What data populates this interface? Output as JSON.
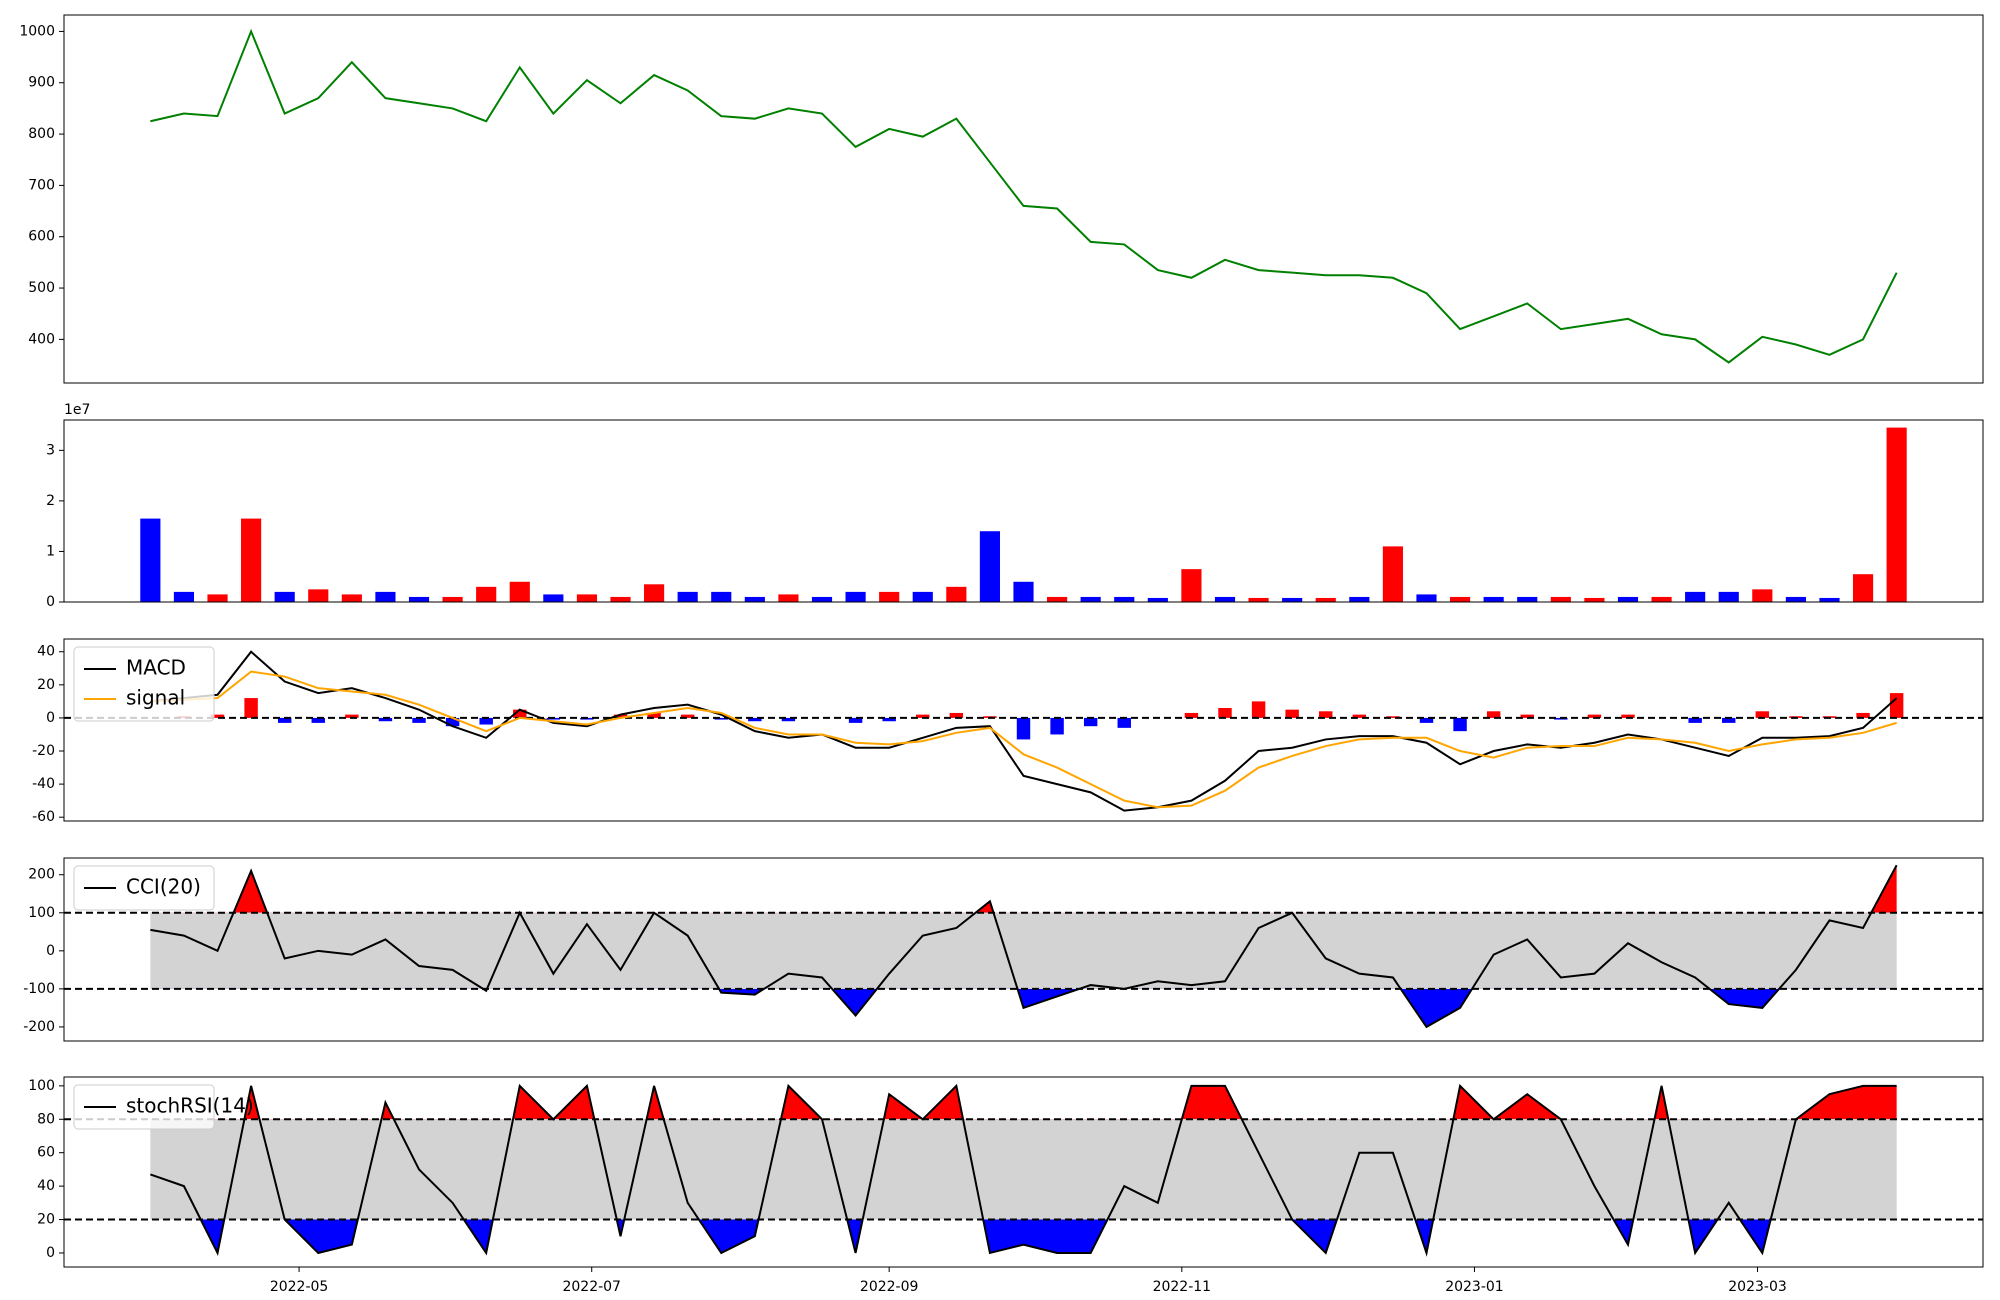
{
  "chart_data": [
    {
      "type": "line",
      "x": [
        0,
        7,
        14,
        21,
        28,
        35,
        42,
        49,
        56,
        63,
        70,
        77,
        84,
        91,
        98,
        105,
        112,
        119,
        126,
        133,
        140,
        147,
        154,
        161,
        168,
        175,
        182,
        189,
        196,
        203,
        210,
        217,
        224,
        231,
        238,
        245,
        252,
        259,
        266,
        273,
        280,
        287,
        294,
        301,
        308,
        315,
        322,
        329,
        336,
        343,
        350,
        357,
        364
      ],
      "xlim": [
        -18,
        382
      ],
      "ylim": [
        315,
        1032
      ],
      "yticks": [
        400,
        500,
        600,
        700,
        800,
        900,
        1000
      ],
      "series": [
        {
          "color": "green",
          "values": [
            825,
            840,
            835,
            1000,
            840,
            870,
            940,
            870,
            860,
            850,
            825,
            930,
            840,
            905,
            860,
            915,
            885,
            835,
            830,
            850,
            840,
            775,
            810,
            795,
            830,
            745,
            660,
            655,
            590,
            585,
            535,
            520,
            555,
            535,
            530,
            525,
            525,
            520,
            490,
            420,
            445,
            470,
            420,
            430,
            440,
            410,
            400,
            355,
            405,
            390,
            370,
            400,
            530
          ]
        }
      ]
    },
    {
      "type": "bar",
      "offset_label": "1e7",
      "x": [
        0,
        7,
        14,
        21,
        28,
        35,
        42,
        49,
        56,
        63,
        70,
        77,
        84,
        91,
        98,
        105,
        112,
        119,
        126,
        133,
        140,
        147,
        154,
        161,
        168,
        175,
        182,
        189,
        196,
        203,
        210,
        217,
        224,
        231,
        238,
        245,
        252,
        259,
        266,
        273,
        280,
        287,
        294,
        301,
        308,
        315,
        322,
        329,
        336,
        343,
        350,
        357,
        364
      ],
      "xlim": [
        -18,
        382
      ],
      "ylim": [
        0,
        3.6
      ],
      "yticks": [
        0,
        1,
        2,
        3
      ],
      "values": [
        1.65,
        0.2,
        0.15,
        1.65,
        0.2,
        0.25,
        0.15,
        0.2,
        0.1,
        0.1,
        0.3,
        0.4,
        0.15,
        0.15,
        0.1,
        0.35,
        0.2,
        0.2,
        0.1,
        0.15,
        0.1,
        0.2,
        0.2,
        0.2,
        0.3,
        1.4,
        0.4,
        0.1,
        0.1,
        0.1,
        0.08,
        0.65,
        0.1,
        0.08,
        0.08,
        0.08,
        0.1,
        1.1,
        0.15,
        0.1,
        0.1,
        0.1,
        0.1,
        0.08,
        0.1,
        0.1,
        0.2,
        0.2,
        0.25,
        0.1,
        0.08,
        0.55,
        3.45
      ],
      "colors": [
        "blue",
        "blue",
        "red",
        "red",
        "blue",
        "red",
        "red",
        "blue",
        "blue",
        "red",
        "red",
        "red",
        "blue",
        "red",
        "red",
        "red",
        "blue",
        "blue",
        "blue",
        "red",
        "blue",
        "blue",
        "red",
        "blue",
        "red",
        "blue",
        "blue",
        "red",
        "blue",
        "blue",
        "blue",
        "red",
        "blue",
        "red",
        "blue",
        "red",
        "blue",
        "red",
        "blue",
        "red",
        "blue",
        "blue",
        "red",
        "red",
        "blue",
        "red",
        "blue",
        "blue",
        "red",
        "blue",
        "blue",
        "red",
        "red"
      ]
    },
    {
      "type": "macd",
      "legend": "upper left",
      "x": [
        0,
        7,
        14,
        21,
        28,
        35,
        42,
        49,
        56,
        63,
        70,
        77,
        84,
        91,
        98,
        105,
        112,
        119,
        126,
        133,
        140,
        147,
        154,
        161,
        168,
        175,
        182,
        189,
        196,
        203,
        210,
        217,
        224,
        231,
        238,
        245,
        252,
        259,
        266,
        273,
        280,
        287,
        294,
        301,
        308,
        315,
        322,
        329,
        336,
        343,
        350,
        357,
        364
      ],
      "xlim": [
        -18,
        382
      ],
      "ylim": [
        -62.3,
        47.7
      ],
      "yticks": [
        -60,
        -40,
        -20,
        0,
        20,
        40
      ],
      "bands": [
        0
      ],
      "series": [
        {
          "name": "MACD",
          "color": "black",
          "values": [
            10,
            12,
            14,
            40,
            22,
            15,
            18,
            12,
            5,
            -5,
            -12,
            5,
            -3,
            -5,
            2,
            6,
            8,
            2,
            -8,
            -12,
            -10,
            -18,
            -18,
            -12,
            -6,
            -5,
            -35,
            -40,
            -45,
            -56,
            -54,
            -50,
            -38,
            -20,
            -18,
            -13,
            -11,
            -11,
            -15,
            -28,
            -20,
            -16,
            -18,
            -15,
            -10,
            -13,
            -18,
            -23,
            -12,
            -12,
            -11,
            -6,
            12
          ]
        },
        {
          "name": "signal",
          "color": "orange",
          "values": [
            10,
            11,
            12,
            28,
            25,
            18,
            16,
            14,
            8,
            0,
            -8,
            0,
            -2,
            -4,
            0,
            3,
            6,
            3,
            -6,
            -10,
            -10,
            -15,
            -16,
            -14,
            -9,
            -6,
            -22,
            -30,
            -40,
            -50,
            -54,
            -53,
            -44,
            -30,
            -23,
            -17,
            -13,
            -12,
            -12,
            -20,
            -24,
            -18,
            -17,
            -17,
            -12,
            -13,
            -15,
            -20,
            -16,
            -13,
            -12,
            -9,
            -3
          ]
        }
      ],
      "histogram": {
        "pos_color": "red",
        "neg_color": "blue",
        "values": [
          0,
          1,
          2,
          12,
          -3,
          -3,
          2,
          -2,
          -3,
          -5,
          -4,
          5,
          -1,
          -1,
          2,
          3,
          2,
          -1,
          -2,
          -2,
          0,
          -3,
          -2,
          2,
          3,
          1,
          -13,
          -10,
          -5,
          -6,
          0,
          3,
          6,
          10,
          5,
          4,
          2,
          1,
          -3,
          -8,
          4,
          2,
          -1,
          2,
          2,
          0,
          -3,
          -3,
          4,
          1,
          1,
          3,
          15
        ]
      }
    },
    {
      "type": "oscillator",
      "legend": "upper left",
      "x": [
        0,
        7,
        14,
        21,
        28,
        35,
        42,
        49,
        56,
        63,
        70,
        77,
        84,
        91,
        98,
        105,
        112,
        119,
        126,
        133,
        140,
        147,
        154,
        161,
        168,
        175,
        182,
        189,
        196,
        203,
        210,
        217,
        224,
        231,
        238,
        245,
        252,
        259,
        266,
        273,
        280,
        287,
        294,
        301,
        308,
        315,
        322,
        329,
        336,
        343,
        350,
        357,
        364
      ],
      "xlim": [
        -18,
        382
      ],
      "ylim": [
        -237,
        244
      ],
      "yticks": [
        -200,
        -100,
        0,
        100,
        200
      ],
      "bands": [
        -100,
        100
      ],
      "band_color": "lightgray",
      "above_color": "red",
      "below_color": "blue",
      "series": [
        {
          "name": "CCI(20)",
          "color": "black",
          "values": [
            55,
            40,
            0,
            210,
            -20,
            0,
            -10,
            30,
            -40,
            -50,
            -105,
            100,
            -60,
            70,
            -50,
            100,
            40,
            -110,
            -115,
            -60,
            -70,
            -170,
            -60,
            40,
            60,
            130,
            -150,
            -120,
            -90,
            -100,
            -80,
            -90,
            -80,
            60,
            100,
            -20,
            -60,
            -70,
            -200,
            -150,
            -10,
            30,
            -70,
            -60,
            20,
            -30,
            -70,
            -140,
            -150,
            -50,
            80,
            60,
            225
          ]
        }
      ]
    },
    {
      "type": "oscillator",
      "legend": "upper left",
      "x": [
        0,
        7,
        14,
        21,
        28,
        35,
        42,
        49,
        56,
        63,
        70,
        77,
        84,
        91,
        98,
        105,
        112,
        119,
        126,
        133,
        140,
        147,
        154,
        161,
        168,
        175,
        182,
        189,
        196,
        203,
        210,
        217,
        224,
        231,
        238,
        245,
        252,
        259,
        266,
        273,
        280,
        287,
        294,
        301,
        308,
        315,
        322,
        329,
        336,
        343,
        350,
        357,
        364
      ],
      "xlim": [
        -18,
        382
      ],
      "ylim": [
        -8.4,
        105.3
      ],
      "yticks": [
        0,
        20,
        40,
        60,
        80,
        100
      ],
      "bands": [
        20,
        80
      ],
      "band_color": "lightgray",
      "above_color": "red",
      "below_color": "blue",
      "xticks": [
        {
          "value": 31,
          "label": "2022-05"
        },
        {
          "value": 92,
          "label": "2022-07"
        },
        {
          "value": 154,
          "label": "2022-09"
        },
        {
          "value": 215,
          "label": "2022-11"
        },
        {
          "value": 276,
          "label": "2023-01"
        },
        {
          "value": 335,
          "label": "2023-03"
        }
      ],
      "series": [
        {
          "name": "stochRSI(14)",
          "color": "black",
          "values": [
            47,
            40,
            0,
            100,
            20,
            0,
            5,
            90,
            50,
            30,
            0,
            100,
            80,
            100,
            10,
            100,
            30,
            0,
            10,
            100,
            80,
            0,
            95,
            80,
            100,
            0,
            5,
            0,
            0,
            40,
            30,
            100,
            100,
            60,
            20,
            0,
            60,
            60,
            0,
            100,
            80,
            95,
            80,
            40,
            5,
            100,
            0,
            30,
            0,
            80,
            95,
            100,
            100
          ]
        }
      ]
    }
  ]
}
